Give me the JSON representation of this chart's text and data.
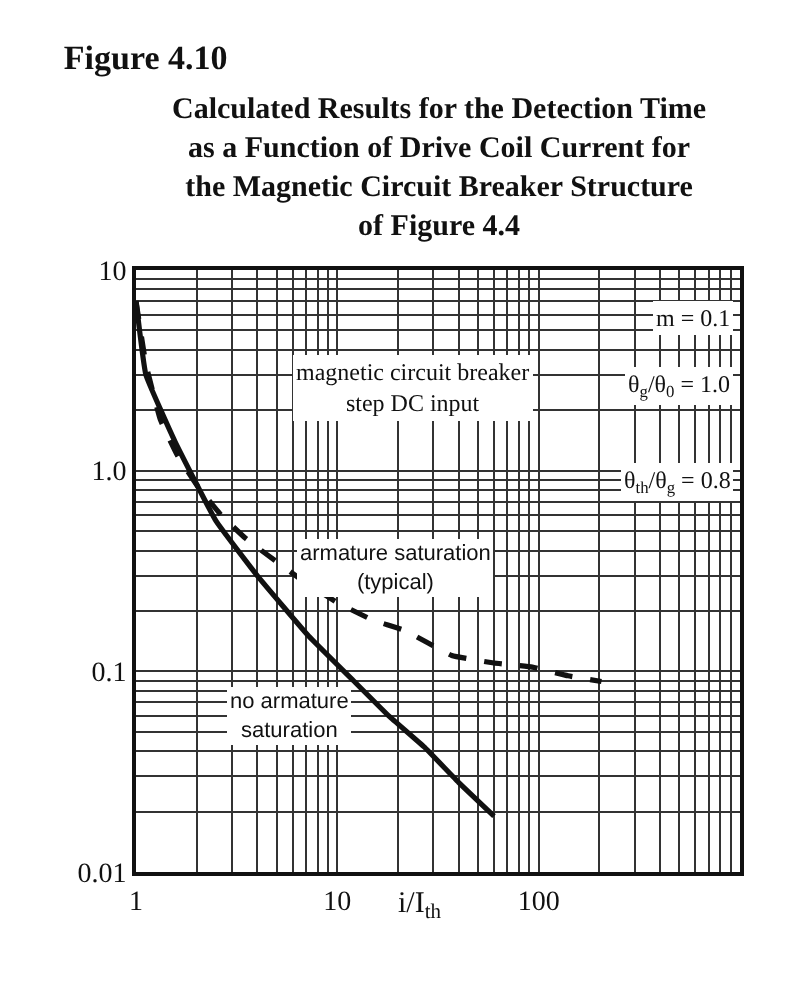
{
  "chart_data": {
    "type": "line",
    "title": "Figure 4.10",
    "subtitle": "Calculated Results for the Detection Time\nas a Function of Drive Coil Current for\nthe Magnetic Circuit Breaker Structure\nof Figure 4.4",
    "xlabel": "i/I$_{th}$",
    "log": "xy",
    "xlim": [
      1,
      1000
    ],
    "xticks": [
      1,
      10,
      100
    ],
    "ylim": [
      0.01,
      10
    ],
    "yticks": [
      0.01,
      0.1,
      {
        "value": 1,
        "label": "1.0"
      },
      10
    ],
    "grid": true,
    "legend": false,
    "marker": "none",
    "series": [
      {
        "name": "armature saturation\n(typical)",
        "color": "#111111",
        "line_style": "dashed",
        "x": [
          1,
          1.12,
          1.32,
          1.6,
          2.0,
          2.65,
          3.5,
          4.5,
          6.5,
          10,
          15,
          21.6,
          37,
          60,
          93,
          140,
          205
        ],
        "values": [
          7,
          3.4,
          1.8,
          1.2,
          0.85,
          0.6,
          0.46,
          0.38,
          0.29,
          0.22,
          0.18,
          0.16,
          0.12,
          0.11,
          0.105,
          0.095,
          0.089
        ]
      },
      {
        "name": "no armature\nsaturation",
        "color": "#111111",
        "line_style": "solid",
        "x": [
          1,
          1.12,
          1.56,
          2.5,
          4,
          7.2,
          12,
          18,
          27,
          40,
          60
        ],
        "values": [
          7,
          3.0,
          1.4,
          0.56,
          0.3,
          0.15,
          0.09,
          0.06,
          0.042,
          0.028,
          0.019
        ]
      }
    ],
    "annotations": [
      "magnetic circuit breaker\nstep DC input",
      "m = 0.1",
      "θ$_{g}$/θ$_{0}$ = 1.0",
      "θ$_{th}$/θ$_{g}$ = 0.8"
    ]
  }
}
